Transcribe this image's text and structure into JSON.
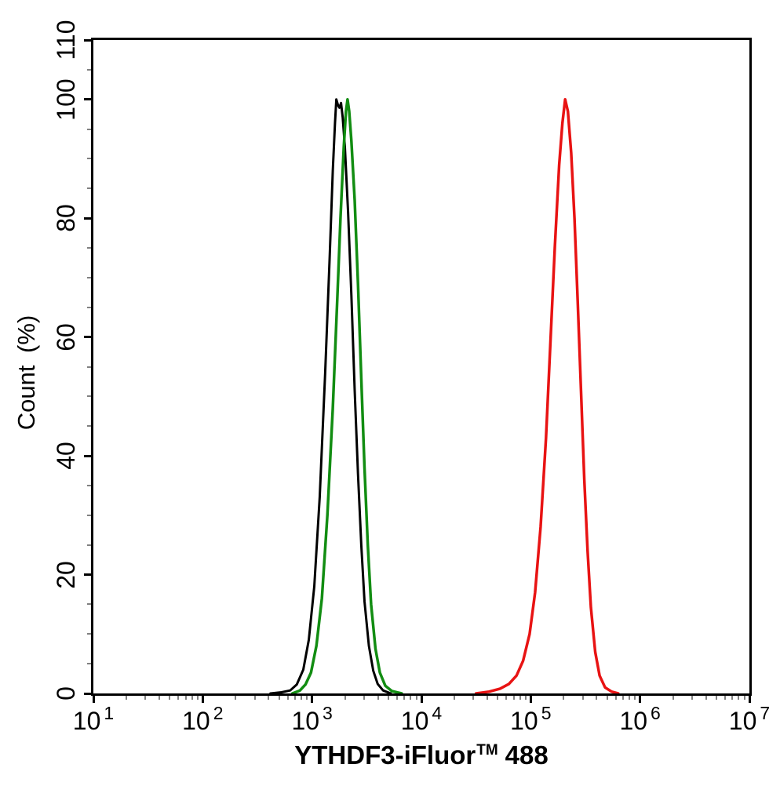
{
  "figure": {
    "background": "#ffffff",
    "axis_color": "#000000",
    "minor_tick_color": "#808080",
    "y_axis": {
      "title": "Count (%)",
      "major_ticks": [
        0,
        20,
        40,
        60,
        80,
        100,
        110
      ],
      "minor_tick_step": 5,
      "min": 0,
      "max": 110
    },
    "x_axis": {
      "title_main": "YTHDF3-iFluor",
      "title_sup": "TM",
      "title_tail": "488",
      "scale": "log10",
      "decade_min": 1,
      "decade_max": 7,
      "major_ticks": [
        {
          "base": "10",
          "exp": "1",
          "log": 1
        },
        {
          "base": "10",
          "exp": "2",
          "log": 2
        },
        {
          "base": "10",
          "exp": "3",
          "log": 3
        },
        {
          "base": "10",
          "exp": "4",
          "log": 4
        },
        {
          "base": "10",
          "exp": "5",
          "log": 5
        },
        {
          "base": "10",
          "exp": "6",
          "log": 6
        },
        {
          "base": "10",
          "exp": "7",
          "log": 7
        }
      ],
      "minor_subdivisions": [
        2,
        3,
        4,
        5,
        6,
        7,
        8,
        9
      ]
    }
  },
  "chart_data": {
    "type": "line",
    "title": "",
    "xlabel": "YTHDF3-iFluor™ 488",
    "ylabel": "Count (%)",
    "x_scale": "log10",
    "xlim": [
      10,
      10000000
    ],
    "ylim": [
      0,
      110
    ],
    "grid": false,
    "legend": false,
    "series": [
      {
        "name": "black-curve",
        "color": "#000000",
        "stroke_width": 3,
        "peak": {
          "x": 1670,
          "y": 100
        },
        "points": [
          [
            2.62,
            0
          ],
          [
            2.72,
            0.2
          ],
          [
            2.8,
            0.5
          ],
          [
            2.86,
            1.5
          ],
          [
            2.92,
            4
          ],
          [
            2.97,
            9
          ],
          [
            3.02,
            18
          ],
          [
            3.07,
            33
          ],
          [
            3.12,
            54
          ],
          [
            3.16,
            73
          ],
          [
            3.19,
            88
          ],
          [
            3.21,
            96
          ],
          [
            3.222,
            100
          ],
          [
            3.238,
            99
          ],
          [
            3.251,
            98.6
          ],
          [
            3.265,
            99.4
          ],
          [
            3.28,
            97
          ],
          [
            3.3,
            92
          ],
          [
            3.33,
            81
          ],
          [
            3.36,
            67
          ],
          [
            3.39,
            51
          ],
          [
            3.42,
            37
          ],
          [
            3.45,
            25
          ],
          [
            3.48,
            15.5
          ],
          [
            3.52,
            8
          ],
          [
            3.56,
            3.8
          ],
          [
            3.6,
            1.6
          ],
          [
            3.65,
            0.5
          ],
          [
            3.72,
            0
          ]
        ]
      },
      {
        "name": "green-curve",
        "color": "#128d12",
        "stroke_width": 3.5,
        "peak": {
          "x": 2110,
          "y": 100
        },
        "points": [
          [
            2.82,
            0
          ],
          [
            2.89,
            0.5
          ],
          [
            2.94,
            1.5
          ],
          [
            2.99,
            3.5
          ],
          [
            3.04,
            8
          ],
          [
            3.09,
            16
          ],
          [
            3.14,
            30
          ],
          [
            3.19,
            48
          ],
          [
            3.23,
            66
          ],
          [
            3.26,
            80
          ],
          [
            3.29,
            92
          ],
          [
            3.31,
            98
          ],
          [
            3.325,
            100
          ],
          [
            3.34,
            98
          ],
          [
            3.36,
            93
          ],
          [
            3.39,
            83
          ],
          [
            3.42,
            69
          ],
          [
            3.45,
            53
          ],
          [
            3.48,
            38
          ],
          [
            3.51,
            25
          ],
          [
            3.54,
            15
          ],
          [
            3.58,
            7.5
          ],
          [
            3.62,
            3.5
          ],
          [
            3.67,
            1.3
          ],
          [
            3.73,
            0.4
          ],
          [
            3.82,
            0
          ]
        ]
      },
      {
        "name": "red-curve",
        "color": "#e81313",
        "stroke_width": 3.5,
        "peak": {
          "x": 207000,
          "y": 100
        },
        "points": [
          [
            4.5,
            0
          ],
          [
            4.62,
            0.3
          ],
          [
            4.72,
            0.8
          ],
          [
            4.8,
            1.6
          ],
          [
            4.87,
            3
          ],
          [
            4.93,
            5.5
          ],
          [
            4.99,
            10
          ],
          [
            5.04,
            17
          ],
          [
            5.09,
            28
          ],
          [
            5.14,
            43
          ],
          [
            5.18,
            59
          ],
          [
            5.22,
            75
          ],
          [
            5.26,
            89
          ],
          [
            5.29,
            96
          ],
          [
            5.315,
            100
          ],
          [
            5.34,
            98
          ],
          [
            5.37,
            91
          ],
          [
            5.4,
            80
          ],
          [
            5.43,
            66
          ],
          [
            5.46,
            51
          ],
          [
            5.49,
            36
          ],
          [
            5.52,
            24
          ],
          [
            5.55,
            14.5
          ],
          [
            5.59,
            7
          ],
          [
            5.63,
            3
          ],
          [
            5.68,
            1
          ],
          [
            5.74,
            0.3
          ],
          [
            5.8,
            0
          ]
        ]
      }
    ]
  }
}
